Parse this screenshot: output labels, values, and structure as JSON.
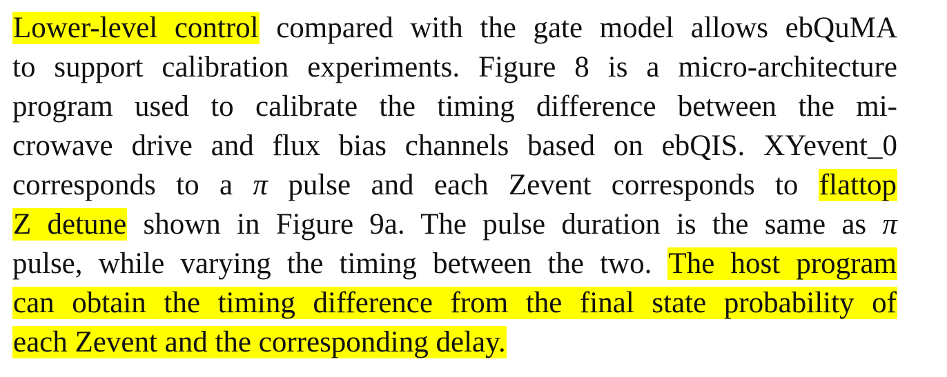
{
  "paragraph": {
    "highlight_color": "#ffff00",
    "lines": [
      {
        "segments": [
          {
            "text": "Lower-level control",
            "highlighted": true
          },
          {
            "text": " compared with the gate model allows ebQuMA",
            "highlighted": false
          }
        ]
      },
      {
        "segments": [
          {
            "text": "to support calibration experiments. Figure 8 is a micro-architecture",
            "highlighted": false
          }
        ]
      },
      {
        "segments": [
          {
            "text": "program used to calibrate the timing difference between the mi-",
            "highlighted": false
          }
        ]
      },
      {
        "segments": [
          {
            "text": "crowave drive and flux bias channels based on ebQIS. XYevent_0",
            "highlighted": false
          }
        ]
      },
      {
        "segments": [
          {
            "text": "corresponds to a ",
            "highlighted": false
          },
          {
            "text": "π",
            "highlighted": false,
            "math": true
          },
          {
            "text": " pulse and each Zevent corresponds to ",
            "highlighted": false
          },
          {
            "text": "flattop",
            "highlighted": true
          }
        ]
      },
      {
        "segments": [
          {
            "text": "Z detune",
            "highlighted": true
          },
          {
            "text": " shown in Figure 9a. The pulse duration is the same as ",
            "highlighted": false
          },
          {
            "text": "π",
            "highlighted": false,
            "math": true
          }
        ]
      },
      {
        "segments": [
          {
            "text": "pulse, while varying the timing between the two. ",
            "highlighted": false
          },
          {
            "text": "The host program",
            "highlighted": true
          }
        ]
      },
      {
        "segments": [
          {
            "text": "can obtain the timing difference from the final state probability of",
            "highlighted": true
          }
        ]
      },
      {
        "segments": [
          {
            "text": "each Zevent and the corresponding delay.",
            "highlighted": true
          }
        ]
      }
    ]
  }
}
